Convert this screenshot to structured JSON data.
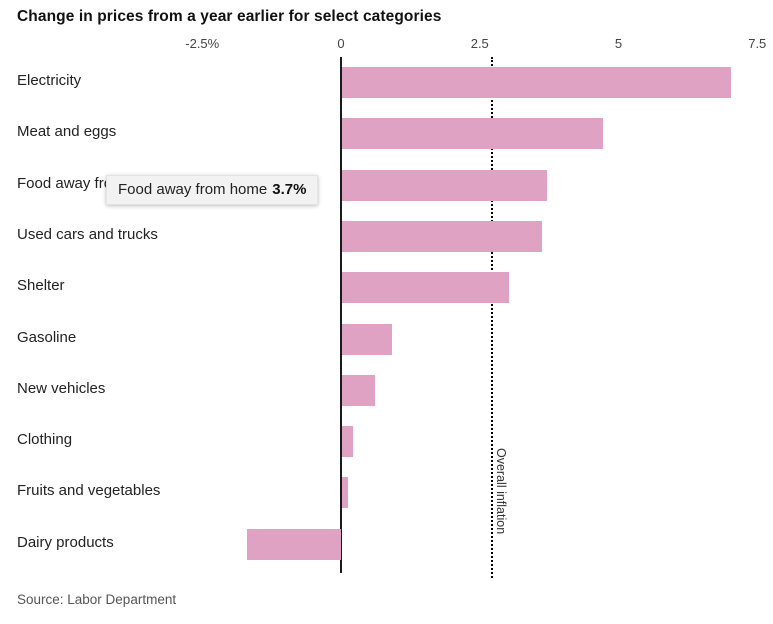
{
  "title": "Change in prices from a year earlier for select categories",
  "source": "Source: Labor Department",
  "tooltip": {
    "label": "Food away from home",
    "value": "3.7%"
  },
  "chart_data": {
    "type": "bar",
    "orientation": "horizontal",
    "title": "Change in prices from a year earlier for select categories",
    "categories": [
      "Electricity",
      "Meat and eggs",
      "Food away from home",
      "Used cars and trucks",
      "Shelter",
      "Gasoline",
      "New vehicles",
      "Clothing",
      "Fruits and vegetables",
      "Dairy products"
    ],
    "values": [
      7.0,
      4.7,
      3.7,
      3.6,
      3.0,
      0.9,
      0.6,
      0.2,
      0.1,
      -1.7
    ],
    "unit": "%",
    "xticks": [
      "-2.5%",
      "0",
      "2.5",
      "5",
      "7.5"
    ],
    "xtick_values": [
      -2.5,
      0,
      2.5,
      5,
      7.5
    ],
    "xlim": [
      -2.5,
      7.5
    ],
    "axis_position": "top",
    "grid": false,
    "reference_line": {
      "value": 2.7,
      "label": "Overall inflation"
    },
    "bar_color": "#e0a2c2",
    "zero_line_color": "#1a1a1a"
  }
}
